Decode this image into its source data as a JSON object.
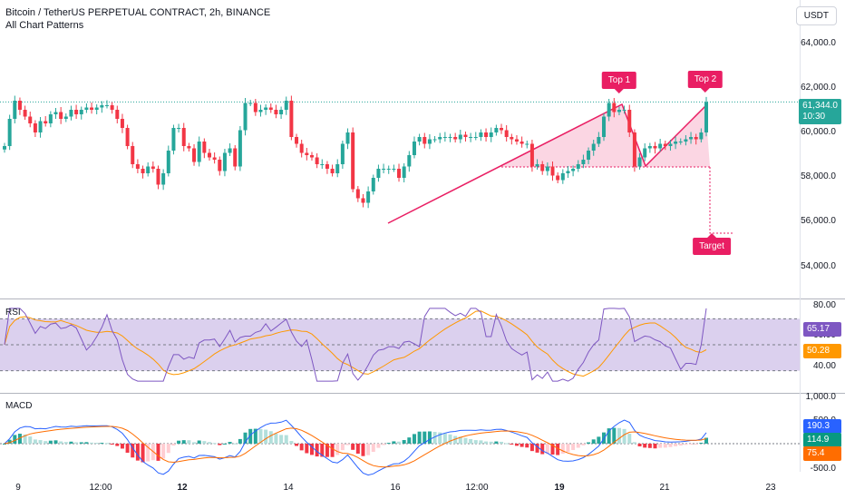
{
  "header": {
    "title": "Bitcoin / TetherUS PERPETUAL CONTRACT, 2h, BINANCE",
    "indicator": "All Chart Patterns",
    "currency": "USDT"
  },
  "price_axis": {
    "labels": [
      "64,000.0",
      "62,000.0",
      "60,000.0",
      "58,000.0",
      "56,000.0",
      "54,000.0"
    ]
  },
  "last_price": {
    "value": "61,344.0",
    "countdown": "10:30"
  },
  "patterns": {
    "top1": "Top 1",
    "top2": "Top 2",
    "target": "Target"
  },
  "rsi": {
    "label": "RSI",
    "axis": [
      "80.00",
      "60.00",
      "40.00"
    ],
    "value": "65.17",
    "ma": "50.28"
  },
  "macd": {
    "label": "MACD",
    "axis": [
      "1,000.0",
      "500.0",
      "-500.0"
    ],
    "macd": "190.3",
    "histogram": "114.9",
    "signal": "75.4"
  },
  "time_axis": {
    "labels": [
      "9",
      "12:00",
      "12",
      "14",
      "16",
      "12:00",
      "19",
      "21",
      "23"
    ]
  },
  "colors": {
    "up": "#26a69a",
    "down": "#f23645",
    "pattern": "#e91e63",
    "rsi_line": "#7e57c2",
    "rsi_ma": "#ff9800",
    "macd_line": "#2962ff",
    "signal_line": "#ff6d00"
  },
  "chart_data": {
    "type": "candlestick",
    "price_closes_approx": [
      59400,
      60600,
      61400,
      61000,
      60700,
      60400,
      60000,
      60500,
      60400,
      60800,
      60900,
      60600,
      60700,
      61000,
      60800,
      61000,
      61100,
      61000,
      61100,
      61200,
      61200,
      61000,
      60600,
      60200,
      59400,
      58600,
      58400,
      58200,
      58500,
      58400,
      57700,
      58200,
      59200,
      60200,
      60200,
      59400,
      59300,
      58700,
      59600,
      59100,
      58900,
      58800,
      58300,
      59100,
      59300,
      58500,
      60100,
      61300,
      61300,
      60900,
      61000,
      61100,
      61000,
      60800,
      61000,
      61400,
      59800,
      59500,
      59100,
      59000,
      58900,
      58600,
      58600,
      58400,
      58200,
      58600,
      59500,
      60000,
      57500,
      57100,
      56900,
      57400,
      58000,
      58400,
      58400,
      58400,
      58400,
      58000,
      58500,
      59000,
      59600,
      59800,
      59500,
      59700,
      59700,
      59800,
      59800,
      59800,
      59700,
      59900,
      59800,
      59800,
      59800,
      60000,
      59800,
      60000,
      60200,
      60100,
      59800,
      59700,
      59600,
      59500,
      59500,
      58500,
      58600,
      58300,
      58500,
      58100,
      57900,
      58200,
      58300,
      58400,
      58600,
      58800,
      59200,
      59500,
      59800,
      60700,
      61300,
      60900,
      61000,
      61000,
      60000,
      58500,
      58900,
      59300,
      59400,
      59300,
      59500,
      59400,
      59500,
      59600,
      59600,
      59700,
      59800,
      59700,
      60000,
      61344
    ],
    "rsi_range": [
      20,
      80
    ],
    "macd_range": [
      -600,
      1000
    ]
  }
}
